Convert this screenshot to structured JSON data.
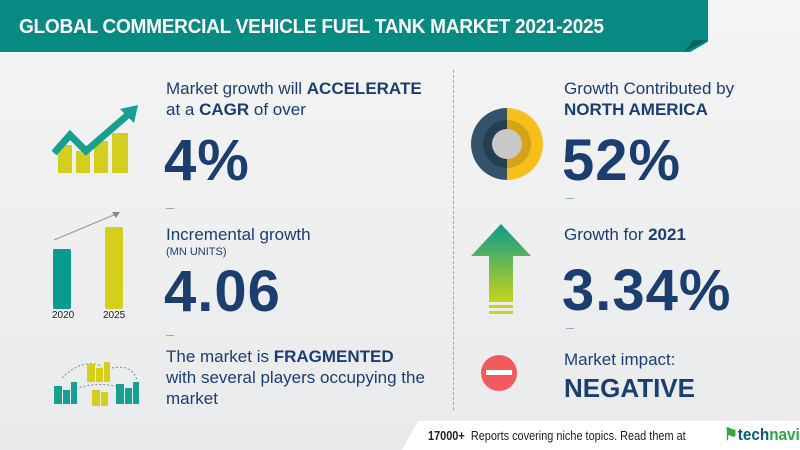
{
  "header": {
    "title": "GLOBAL COMMERCIAL VEHICLE FUEL TANK MARKET 2021-2025"
  },
  "cagr": {
    "line1_pre": "Market growth will ",
    "line1_bold": "ACCELERATE",
    "line2_pre": "at a ",
    "line2_bold": "CAGR",
    "line2_post": " of over",
    "value": "4%"
  },
  "incremental": {
    "label": "Incremental growth",
    "unit": "(MN UNITS)",
    "value": "4.06",
    "bars": [
      {
        "year": "2020"
      },
      {
        "year": "2025"
      }
    ]
  },
  "market": {
    "line1_pre": "The market is ",
    "line1_bold": "FRAGMENTED",
    "line2": "with several players occupying the",
    "line3": "market"
  },
  "region": {
    "label": "Growth Contributed by",
    "region": "NORTH AMERICA",
    "value": "52%"
  },
  "growth2021": {
    "label_pre": "Growth for ",
    "year": "2021",
    "value": "3.34%"
  },
  "impact": {
    "label": "Market impact:",
    "value": "NEGATIVE"
  },
  "footer": {
    "count": "17000+",
    "text": "Reports covering niche topics. Read them at",
    "logo_a": "tech",
    "logo_b": "navio"
  },
  "colors": {
    "teal": "#078a82",
    "lime": "#d3cf1b",
    "navy": "#1c3e6e",
    "red": "#f05a5f",
    "yellow": "#f7bf19"
  }
}
